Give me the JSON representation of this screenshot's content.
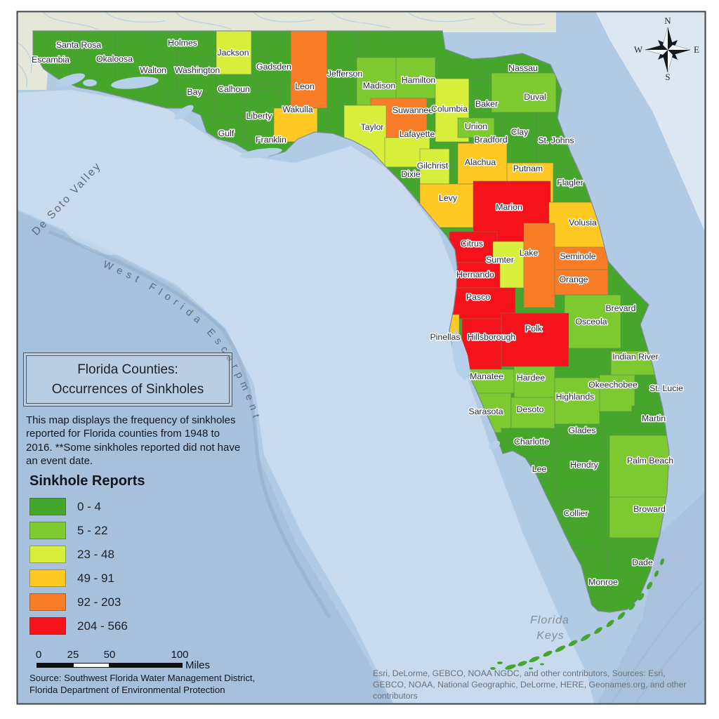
{
  "map": {
    "title_line1": "Florida Counties:",
    "title_line2": "Occurrences of Sinkholes",
    "description": "This map displays the frequency of sinkholes reported for Florida counties from 1948 to 2016. **Some sinkholes reported did not have an event date.",
    "source": "Source: Southwest Florida Water Management District, Florida Department of Environmental Protection",
    "attribution": "Esri, DeLorme, GEBCO, NOAA NGDC, and other contributors, Sources: Esri, GEBCO, NOAA, National Geographic, DeLorme, HERE, Geonames.org, and other contributors",
    "compass": {
      "n": "N",
      "e": "E",
      "s": "S",
      "w": "W"
    },
    "ocean_labels": {
      "desoto": "De Soto Valley",
      "escarpment": "West Florida Escarpment",
      "keys_line1": "Florida",
      "keys_line2": "Keys"
    },
    "legend": {
      "title": "Sinkhole Reports",
      "items": [
        {
          "label": "0 - 4",
          "color": "#45A62B"
        },
        {
          "label": "5 - 22",
          "color": "#7DC930"
        },
        {
          "label": "23 - 48",
          "color": "#D7EE3A"
        },
        {
          "label": "49 - 91",
          "color": "#FFC822"
        },
        {
          "label": "92 - 203",
          "color": "#F97D26"
        },
        {
          "label": "204 - 566",
          "color": "#F6121B"
        }
      ]
    },
    "scalebar": {
      "ticks": [
        "0",
        "25",
        "50",
        "100"
      ],
      "unit": "Miles"
    },
    "counties": [
      {
        "n": "Escambia",
        "c": 0,
        "r": [
          44,
          44,
          56,
          106
        ],
        "l": [
          72,
          85
        ]
      },
      {
        "n": "Santa Rosa",
        "c": 0,
        "r": [
          100,
          44,
          64,
          104
        ],
        "l": [
          112,
          64
        ]
      },
      {
        "n": "Okaloosa",
        "c": 0,
        "r": [
          164,
          44,
          54,
          102
        ],
        "l": [
          163,
          84
        ]
      },
      {
        "n": "Holmes",
        "c": 0,
        "r": [
          252,
          44,
          56,
          44
        ],
        "l": [
          260,
          61
        ]
      },
      {
        "n": "Walton",
        "c": 0,
        "r": [
          218,
          44,
          34,
          116
        ],
        "l": [
          218,
          100
        ]
      },
      {
        "n": "Washington",
        "c": 0,
        "r": [
          252,
          88,
          56,
          46
        ],
        "l": [
          281,
          100
        ]
      },
      {
        "n": "Jackson",
        "c": 2,
        "r": [
          308,
          44,
          76,
          62
        ],
        "l": [
          332,
          75
        ]
      },
      {
        "n": "Bay",
        "c": 0,
        "r": [
          236,
          134,
          68,
          84
        ],
        "l": [
          277,
          131
        ]
      },
      {
        "n": "Calhoun",
        "c": 0,
        "r": [
          308,
          106,
          58,
          60
        ],
        "l": [
          333,
          127
        ]
      },
      {
        "n": "Gulf",
        "c": 0,
        "r": [
          302,
          166,
          44,
          62
        ],
        "l": [
          322,
          190
        ]
      },
      {
        "n": "Liberty",
        "c": 0,
        "r": [
          348,
          128,
          50,
          72
        ],
        "l": [
          369,
          165
        ]
      },
      {
        "n": "Franklin",
        "c": 0,
        "r": [
          346,
          200,
          86,
          28
        ],
        "l": [
          386,
          199
        ]
      },
      {
        "n": "Gadsden",
        "c": 0,
        "r": [
          358,
          44,
          56,
          74
        ],
        "l": [
          390,
          95
        ]
      },
      {
        "n": "Leon",
        "c": 4,
        "r": [
          414,
          44,
          52,
          110
        ],
        "l": [
          434,
          123
        ]
      },
      {
        "n": "Wakulla",
        "c": 3,
        "r": [
          390,
          154,
          62,
          48
        ],
        "l": [
          424,
          156
        ]
      },
      {
        "n": "Jefferson",
        "c": 0,
        "r": [
          466,
          44,
          42,
          150
        ],
        "l": [
          491,
          105
        ]
      },
      {
        "n": "Madison",
        "c": 1,
        "r": [
          508,
          82,
          56,
          68
        ],
        "l": [
          540,
          122
        ]
      },
      {
        "n": "Hamilton",
        "c": 1,
        "r": [
          564,
          82,
          56,
          58
        ],
        "l": [
          596,
          114
        ]
      },
      {
        "n": "Suwannee",
        "c": 4,
        "r": [
          528,
          140,
          80,
          56
        ],
        "l": [
          588,
          157
        ]
      },
      {
        "n": "Columbia",
        "c": 2,
        "r": [
          620,
          112,
          48,
          90
        ],
        "l": [
          640,
          155
        ]
      },
      {
        "n": "Taylor",
        "c": 2,
        "r": [
          490,
          150,
          60,
          88
        ],
        "l": [
          530,
          181
        ]
      },
      {
        "n": "Lafayette",
        "c": 2,
        "r": [
          548,
          196,
          64,
          42
        ],
        "l": [
          594,
          191
        ]
      },
      {
        "n": "Dixie",
        "c": 0,
        "r": [
          540,
          238,
          56,
          54
        ],
        "l": [
          585,
          248
        ]
      },
      {
        "n": "Gilchrist",
        "c": 2,
        "r": [
          598,
          212,
          42,
          50
        ],
        "l": [
          616,
          236
        ]
      },
      {
        "n": "Baker",
        "c": 0,
        "r": [
          668,
          112,
          52,
          56
        ],
        "l": [
          693,
          148
        ]
      },
      {
        "n": "Nassau",
        "c": 0,
        "r": [
          684,
          58,
          100,
          46
        ],
        "l": [
          745,
          97
        ]
      },
      {
        "n": "Duval",
        "c": 1,
        "r": [
          700,
          104,
          92,
          56
        ],
        "l": [
          762,
          138
        ]
      },
      {
        "n": "Union",
        "c": 1,
        "r": [
          652,
          168,
          52,
          28
        ],
        "l": [
          678,
          180
        ]
      },
      {
        "n": "Bradford",
        "c": 0,
        "r": [
          668,
          196,
          54,
          36
        ],
        "l": [
          699,
          199
        ]
      },
      {
        "n": "Clay",
        "c": 0,
        "r": [
          714,
          160,
          50,
          72
        ],
        "l": [
          740,
          188
        ]
      },
      {
        "n": "St. Johns",
        "c": 0,
        "r": [
          764,
          160,
          58,
          80
        ],
        "l": [
          792,
          200
        ]
      },
      {
        "n": "Putnam",
        "c": 3,
        "r": [
          716,
          232,
          72,
          56
        ],
        "l": [
          752,
          240
        ]
      },
      {
        "n": "Flagler",
        "c": 0,
        "r": [
          788,
          240,
          54,
          48
        ],
        "l": [
          812,
          260
        ]
      },
      {
        "n": "Alachua",
        "c": 3,
        "r": [
          652,
          204,
          70,
          58
        ],
        "l": [
          684,
          231
        ]
      },
      {
        "n": "Levy",
        "c": 3,
        "r": [
          598,
          262,
          76,
          62
        ],
        "l": [
          638,
          282
        ]
      },
      {
        "n": "Marion",
        "c": 5,
        "r": [
          674,
          258,
          110,
          86
        ],
        "l": [
          725,
          295
        ]
      },
      {
        "n": "Volusia",
        "c": 3,
        "r": [
          782,
          288,
          94,
          76
        ],
        "l": [
          830,
          317
        ]
      },
      {
        "n": "Citrus",
        "c": 5,
        "r": [
          640,
          330,
          68,
          44
        ],
        "l": [
          672,
          347
        ]
      },
      {
        "n": "Sumter",
        "c": 2,
        "r": [
          702,
          344,
          44,
          66
        ],
        "l": [
          712,
          370
        ]
      },
      {
        "n": "Lake",
        "c": 4,
        "r": [
          746,
          318,
          44,
          120
        ],
        "l": [
          753,
          360
        ]
      },
      {
        "n": "Seminole",
        "c": 4,
        "r": [
          790,
          352,
          78,
          32
        ],
        "l": [
          823,
          365
        ]
      },
      {
        "n": "Orange",
        "c": 4,
        "r": [
          790,
          384,
          82,
          36
        ],
        "l": [
          817,
          398
        ]
      },
      {
        "n": "Hernando",
        "c": 5,
        "r": [
          640,
          374,
          72,
          36
        ],
        "l": [
          677,
          391
        ]
      },
      {
        "n": "Pasco",
        "c": 5,
        "r": [
          638,
          410,
          96,
          44
        ],
        "l": [
          681,
          423
        ]
      },
      {
        "n": "Brevard",
        "c": 0,
        "r": [
          866,
          350,
          64,
          154
        ],
        "l": [
          884,
          439
        ]
      },
      {
        "n": "Osceola",
        "c": 1,
        "r": [
          804,
          420,
          80,
          76
        ],
        "l": [
          842,
          458
        ]
      },
      {
        "n": "Polk",
        "c": 5,
        "r": [
          714,
          446,
          96,
          76
        ],
        "l": [
          760,
          468
        ]
      },
      {
        "n": "Hillsborough",
        "c": 5,
        "r": [
          658,
          454,
          56,
          72
        ],
        "l": [
          700,
          480
        ]
      },
      {
        "n": "Pinellas",
        "c": 3,
        "r": [
          628,
          448,
          26,
          82
        ],
        "l": [
          634,
          480
        ]
      },
      {
        "n": "Manatee",
        "c": 1,
        "r": [
          652,
          526,
          80,
          34
        ],
        "l": [
          693,
          536
        ]
      },
      {
        "n": "Hardee",
        "c": 1,
        "r": [
          732,
          522,
          58,
          44
        ],
        "l": [
          756,
          538
        ]
      },
      {
        "n": "Highlands",
        "c": 1,
        "r": [
          790,
          538,
          64,
          66
        ],
        "l": [
          819,
          565
        ]
      },
      {
        "n": "Okeechobee",
        "c": 1,
        "r": [
          854,
          534,
          60,
          52
        ],
        "l": [
          873,
          548
        ]
      },
      {
        "n": "Indian River",
        "c": 1,
        "r": [
          870,
          500,
          72,
          34
        ],
        "l": [
          905,
          508
        ]
      },
      {
        "n": "St. Lucie",
        "c": 0,
        "r": [
          904,
          534,
          56,
          44
        ],
        "l": [
          949,
          553
        ]
      },
      {
        "n": "Sarasota",
        "c": 1,
        "r": [
          652,
          560,
          76,
          56
        ],
        "l": [
          692,
          586
        ]
      },
      {
        "n": "Desoto",
        "c": 1,
        "r": [
          728,
          566,
          62,
          44
        ],
        "l": [
          755,
          583
        ]
      },
      {
        "n": "Martin",
        "c": 0,
        "r": [
          900,
          578,
          60,
          42
        ],
        "l": [
          931,
          596
        ]
      },
      {
        "n": "Charlotte",
        "c": 0,
        "r": [
          714,
          610,
          78,
          44
        ],
        "l": [
          757,
          629
        ]
      },
      {
        "n": "Glades",
        "c": 0,
        "r": [
          790,
          604,
          70,
          44
        ],
        "l": [
          829,
          613
        ]
      },
      {
        "n": "Lee",
        "c": 0,
        "r": [
          722,
          654,
          70,
          60
        ],
        "l": [
          768,
          668
        ]
      },
      {
        "n": "Hendry",
        "c": 0,
        "r": [
          790,
          648,
          80,
          52
        ],
        "l": [
          832,
          662
        ]
      },
      {
        "n": "Palm Beach",
        "c": 1,
        "r": [
          868,
          620,
          96,
          88
        ],
        "l": [
          926,
          656
        ]
      },
      {
        "n": "Collier",
        "c": 0,
        "r": [
          744,
          714,
          112,
          66
        ],
        "l": [
          820,
          731
        ]
      },
      {
        "n": "Broward",
        "c": 1,
        "r": [
          868,
          708,
          94,
          58
        ],
        "l": [
          925,
          725
        ]
      },
      {
        "n": "Dade",
        "c": 0,
        "r": [
          862,
          766,
          88,
          106
        ],
        "l": [
          915,
          801
        ]
      },
      {
        "n": "Monroe",
        "c": 0,
        "r": [
          784,
          780,
          80,
          72
        ],
        "l": [
          859,
          829
        ]
      }
    ]
  }
}
